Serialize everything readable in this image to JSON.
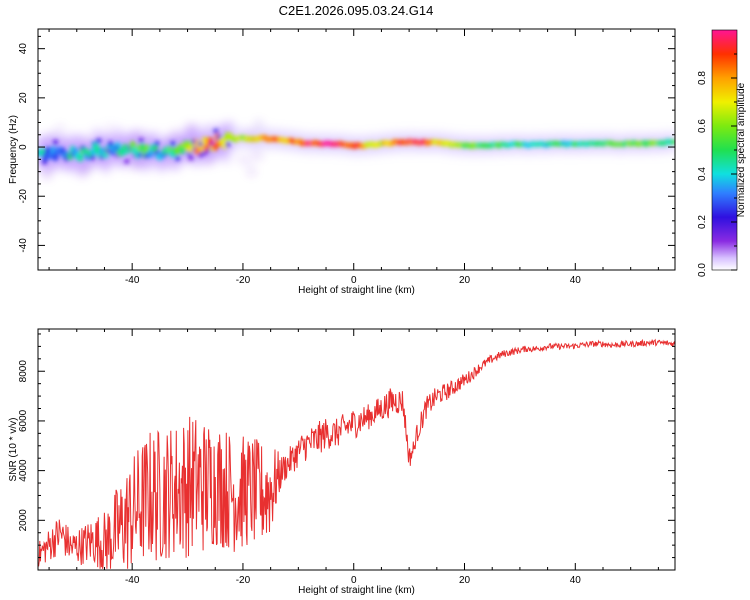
{
  "title": "C2E1.2026.095.03.24.G14",
  "colors": {
    "snr_line": "#e83030",
    "frame": "#000000"
  },
  "chart_data": [
    {
      "type": "heatmap",
      "title": "C2E1.2026.095.03.24.G14",
      "xlabel": "Height of straight line (km)",
      "ylabel": "Frequency (Hz)",
      "xlim": [
        -57,
        58
      ],
      "ylim": [
        -50,
        48
      ],
      "xticks": [
        -40,
        -20,
        0,
        20,
        40
      ],
      "xtick_labels": [
        "-40",
        "-20",
        "0",
        "20",
        "40"
      ],
      "yticks": [
        -40,
        -20,
        0,
        20,
        40
      ],
      "ytick_labels": [
        "-40",
        "-20",
        "0",
        "20",
        "40"
      ],
      "colorbar": {
        "label": "Normalized spectral amplitude",
        "range": [
          0,
          1
        ],
        "ticks": [
          0.0,
          0.2,
          0.4,
          0.6,
          0.8
        ],
        "tick_labels": [
          "0.0",
          "0.2",
          "0.4",
          "0.6",
          "0.8"
        ]
      },
      "ridge": {
        "height_km": [
          -57,
          -50,
          -45,
          -40,
          -35,
          -30,
          -27,
          -24,
          -20,
          -16,
          -12,
          -8,
          -4,
          0,
          4,
          8,
          12,
          16,
          20,
          25,
          30,
          35,
          40,
          45,
          50,
          55,
          58
        ],
        "frequency_hz": [
          -3,
          -2.5,
          -1.5,
          -1,
          -2,
          -1,
          1,
          2.5,
          3.5,
          3.5,
          2.5,
          1.5,
          1.5,
          0.5,
          1,
          2,
          2,
          1.5,
          0.5,
          0.8,
          1,
          1,
          1.5,
          1.5,
          1.5,
          1.5,
          2.5
        ],
        "amplitude": [
          0.35,
          0.4,
          0.4,
          0.45,
          0.45,
          0.55,
          0.85,
          0.7,
          0.6,
          0.85,
          0.8,
          0.95,
          0.95,
          0.9,
          0.6,
          0.9,
          0.9,
          0.7,
          0.55,
          0.5,
          0.45,
          0.45,
          0.45,
          0.5,
          0.55,
          0.55,
          0.5
        ]
      }
    },
    {
      "type": "line",
      "xlabel": "Height of straight line (km)",
      "ylabel": "SNR (10 * v/v)",
      "xlim": [
        -57,
        58
      ],
      "ylim": [
        0,
        9700
      ],
      "xticks": [
        -40,
        -20,
        0,
        20,
        40
      ],
      "xtick_labels": [
        "-40",
        "-20",
        "0",
        "20",
        "40"
      ],
      "yticks": [
        2000,
        4000,
        6000,
        8000
      ],
      "ytick_labels": [
        "2000",
        "4000",
        "6000",
        "8000"
      ],
      "series": [
        {
          "name": "SNR",
          "x": [
            -57,
            -55,
            -53,
            -51,
            -49,
            -47,
            -45,
            -43,
            -41,
            -39,
            -37,
            -35,
            -33,
            -31,
            -29,
            -27,
            -25,
            -23,
            -21,
            -19,
            -17,
            -15,
            -13,
            -11,
            -9,
            -7,
            -5,
            -3,
            -1,
            1,
            3,
            5,
            7,
            9,
            11,
            13,
            15,
            17,
            19,
            21,
            23,
            25,
            27,
            29,
            31,
            33,
            35,
            37,
            39,
            41,
            43,
            45,
            47,
            49,
            51,
            53,
            55,
            58
          ],
          "y": [
            600,
            1000,
            1500,
            900,
            1000,
            1200,
            1100,
            1500,
            2000,
            2500,
            3000,
            3000,
            3200,
            3300,
            3500,
            3400,
            3500,
            3300,
            3000,
            3200,
            3000,
            3200,
            4000,
            4500,
            5000,
            5200,
            5500,
            5500,
            5800,
            6000,
            6200,
            6500,
            6800,
            6800,
            5200,
            6500,
            7000,
            7200,
            7500,
            7800,
            8200,
            8500,
            8700,
            8800,
            8900,
            8900,
            9000,
            9000,
            9000,
            9050,
            9100,
            9100,
            9050,
            9100,
            9100,
            9150,
            9150,
            9100
          ],
          "spread": [
            500,
            700,
            800,
            700,
            800,
            1000,
            1300,
            1800,
            2200,
            2500,
            2700,
            2800,
            2700,
            2900,
            2900,
            2800,
            2600,
            2500,
            2400,
            2300,
            2200,
            2000,
            600,
            600,
            650,
            700,
            650,
            600,
            650,
            600,
            500,
            550,
            600,
            500,
            400,
            450,
            400,
            350,
            300,
            250,
            200,
            180,
            150,
            140,
            130,
            130,
            120,
            120,
            120,
            120,
            120,
            120,
            120,
            120,
            120,
            120,
            120,
            120
          ]
        }
      ]
    }
  ]
}
